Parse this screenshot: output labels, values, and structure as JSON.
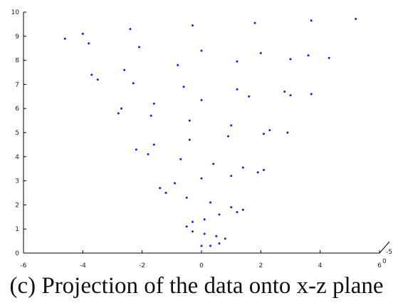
{
  "caption": "(c)  Projection of the data onto x-z plane",
  "chart_data": {
    "type": "scatter",
    "title": "",
    "xlabel": "",
    "ylabel": "",
    "xlim": [
      -6,
      6
    ],
    "ylim": [
      0,
      10
    ],
    "x_ticks": [
      -6,
      -4,
      -2,
      0,
      2,
      4,
      6
    ],
    "y_ticks": [
      0,
      1,
      2,
      3,
      4,
      5,
      6,
      7,
      8,
      9,
      10
    ],
    "corner_ticks": [
      "-5",
      "0"
    ],
    "grid": false,
    "marker_color": "#1a1ae6",
    "series": [
      {
        "description_note": "",
        "points": [
          [
            0.0,
            0.3
          ],
          [
            0.3,
            0.3
          ],
          [
            0.6,
            0.4
          ],
          [
            0.8,
            0.6
          ],
          [
            0.5,
            0.7
          ],
          [
            0.1,
            0.8
          ],
          [
            -0.3,
            0.9
          ],
          [
            -0.5,
            1.1
          ],
          [
            -0.3,
            1.3
          ],
          [
            0.1,
            1.4
          ],
          [
            0.6,
            1.6
          ],
          [
            1.2,
            1.7
          ],
          [
            1.4,
            1.8
          ],
          [
            1.0,
            1.9
          ],
          [
            0.3,
            2.1
          ],
          [
            -0.5,
            2.3
          ],
          [
            -1.2,
            2.5
          ],
          [
            -1.4,
            2.7
          ],
          [
            -0.9,
            2.9
          ],
          [
            0.0,
            3.1
          ],
          [
            1.0,
            3.2
          ],
          [
            1.9,
            3.35
          ],
          [
            2.1,
            3.45
          ],
          [
            1.4,
            3.55
          ],
          [
            0.4,
            3.7
          ],
          [
            -0.7,
            3.9
          ],
          [
            -1.8,
            4.1
          ],
          [
            -2.2,
            4.3
          ],
          [
            -1.6,
            4.5
          ],
          [
            -0.4,
            4.7
          ],
          [
            0.9,
            4.85
          ],
          [
            2.1,
            4.95
          ],
          [
            2.9,
            5.0
          ],
          [
            2.3,
            5.1
          ],
          [
            1.0,
            5.3
          ],
          [
            -0.4,
            5.5
          ],
          [
            -1.7,
            5.7
          ],
          [
            -2.8,
            5.8
          ],
          [
            -2.7,
            6.0
          ],
          [
            -1.6,
            6.2
          ],
          [
            0.0,
            6.35
          ],
          [
            1.6,
            6.5
          ],
          [
            3.0,
            6.55
          ],
          [
            3.7,
            6.6
          ],
          [
            2.8,
            6.7
          ],
          [
            1.2,
            6.8
          ],
          [
            -0.6,
            6.9
          ],
          [
            -2.3,
            7.05
          ],
          [
            -3.5,
            7.2
          ],
          [
            -3.7,
            7.4
          ],
          [
            -2.6,
            7.6
          ],
          [
            -0.8,
            7.8
          ],
          [
            1.2,
            7.95
          ],
          [
            3.0,
            8.05
          ],
          [
            4.3,
            8.1
          ],
          [
            3.6,
            8.2
          ],
          [
            2.0,
            8.3
          ],
          [
            0.0,
            8.4
          ],
          [
            -2.1,
            8.55
          ],
          [
            -3.8,
            8.7
          ],
          [
            -4.6,
            8.9
          ],
          [
            -4.0,
            9.1
          ],
          [
            -2.4,
            9.3
          ],
          [
            -0.3,
            9.45
          ],
          [
            1.8,
            9.55
          ],
          [
            3.7,
            9.65
          ],
          [
            5.2,
            9.72
          ]
        ]
      }
    ]
  }
}
